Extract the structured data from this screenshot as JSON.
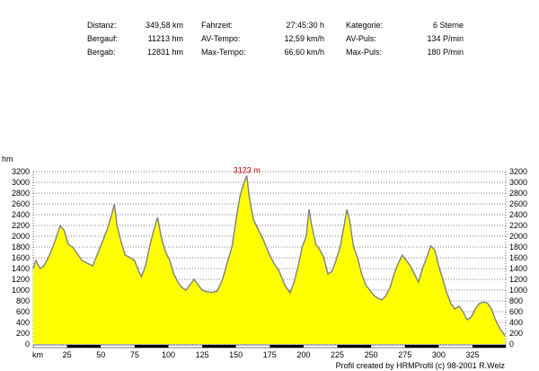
{
  "stats": {
    "col1": [
      {
        "label": "Distanz:",
        "value": "349,58 km"
      },
      {
        "label": "Bergauf:",
        "value": "11213 hm"
      },
      {
        "label": "Bergab:",
        "value": "12831 hm"
      }
    ],
    "col2": [
      {
        "label": "Fahrzeit:",
        "value": "27:45:30 h"
      },
      {
        "label": "AV-Tempo:",
        "value": "12,59 km/h"
      },
      {
        "label": "Max-Tempo:",
        "value": "66,60 km/h"
      }
    ],
    "col3": [
      {
        "label": "Kategorie:",
        "value": "6 Sterne"
      },
      {
        "label": "AV-Puls:",
        "value": "134 P/min"
      },
      {
        "label": "Max-Puls:",
        "value": "180 P/min"
      }
    ]
  },
  "credit": "Profil created by HRMProfil (c) 98-2001 R.Welz",
  "chart_data": {
    "type": "area",
    "ylabel": "hm",
    "xlabel": "km",
    "xlim": [
      0,
      349.58
    ],
    "ylim": [
      0,
      3200
    ],
    "yticks": [
      0,
      200,
      400,
      600,
      800,
      1000,
      1200,
      1400,
      1600,
      1800,
      2000,
      2200,
      2400,
      2600,
      2800,
      3000,
      3200
    ],
    "xticks": [
      25,
      50,
      75,
      100,
      125,
      150,
      175,
      200,
      225,
      250,
      275,
      300,
      325
    ],
    "grid": true,
    "fill_color": "#ffff00",
    "line_color": "#808080",
    "annotation": {
      "text": "3123 m",
      "x": 158,
      "y": 3123,
      "color": "#c00000"
    },
    "x": [
      0,
      2,
      5,
      8,
      12,
      16,
      20,
      23,
      26,
      29,
      32,
      36,
      40,
      44,
      48,
      52,
      55,
      58,
      60,
      62,
      65,
      68,
      72,
      75,
      78,
      80,
      83,
      86,
      89,
      92,
      95,
      98,
      101,
      104,
      107,
      110,
      113,
      116,
      119,
      122,
      125,
      128,
      132,
      136,
      140,
      144,
      147,
      150,
      153,
      156,
      158,
      160,
      163,
      166,
      170,
      174,
      178,
      182,
      186,
      190,
      193,
      196,
      199,
      202,
      204,
      206,
      209,
      212,
      215,
      218,
      221,
      224,
      227,
      230,
      232,
      234,
      237,
      240,
      243,
      246,
      249,
      252,
      255,
      258,
      261,
      264,
      267,
      270,
      273,
      276,
      279,
      282,
      285,
      288,
      291,
      294,
      297,
      300,
      303,
      306,
      309,
      312,
      315,
      318,
      321,
      324,
      327,
      330,
      333,
      336,
      339,
      342,
      345,
      349
    ],
    "y": [
      1400,
      1550,
      1400,
      1450,
      1650,
      1900,
      2200,
      2100,
      1850,
      1800,
      1700,
      1550,
      1500,
      1450,
      1700,
      1950,
      2150,
      2400,
      2600,
      2200,
      1900,
      1650,
      1600,
      1550,
      1350,
      1250,
      1450,
      1800,
      2100,
      2350,
      1950,
      1700,
      1550,
      1300,
      1150,
      1050,
      1000,
      1100,
      1200,
      1100,
      1000,
      970,
      960,
      980,
      1200,
      1550,
      1800,
      2300,
      2750,
      3000,
      3123,
      2700,
      2300,
      2150,
      1950,
      1700,
      1500,
      1350,
      1100,
      950,
      1150,
      1450,
      1800,
      2000,
      2500,
      2200,
      1850,
      1750,
      1600,
      1300,
      1350,
      1550,
      1800,
      2200,
      2500,
      2300,
      1800,
      1600,
      1300,
      1100,
      1000,
      900,
      850,
      820,
      900,
      1050,
      1300,
      1500,
      1650,
      1550,
      1450,
      1300,
      1150,
      1400,
      1600,
      1820,
      1750,
      1450,
      1200,
      950,
      750,
      650,
      700,
      600,
      450,
      500,
      650,
      750,
      780,
      760,
      650,
      450,
      300,
      150
    ]
  }
}
